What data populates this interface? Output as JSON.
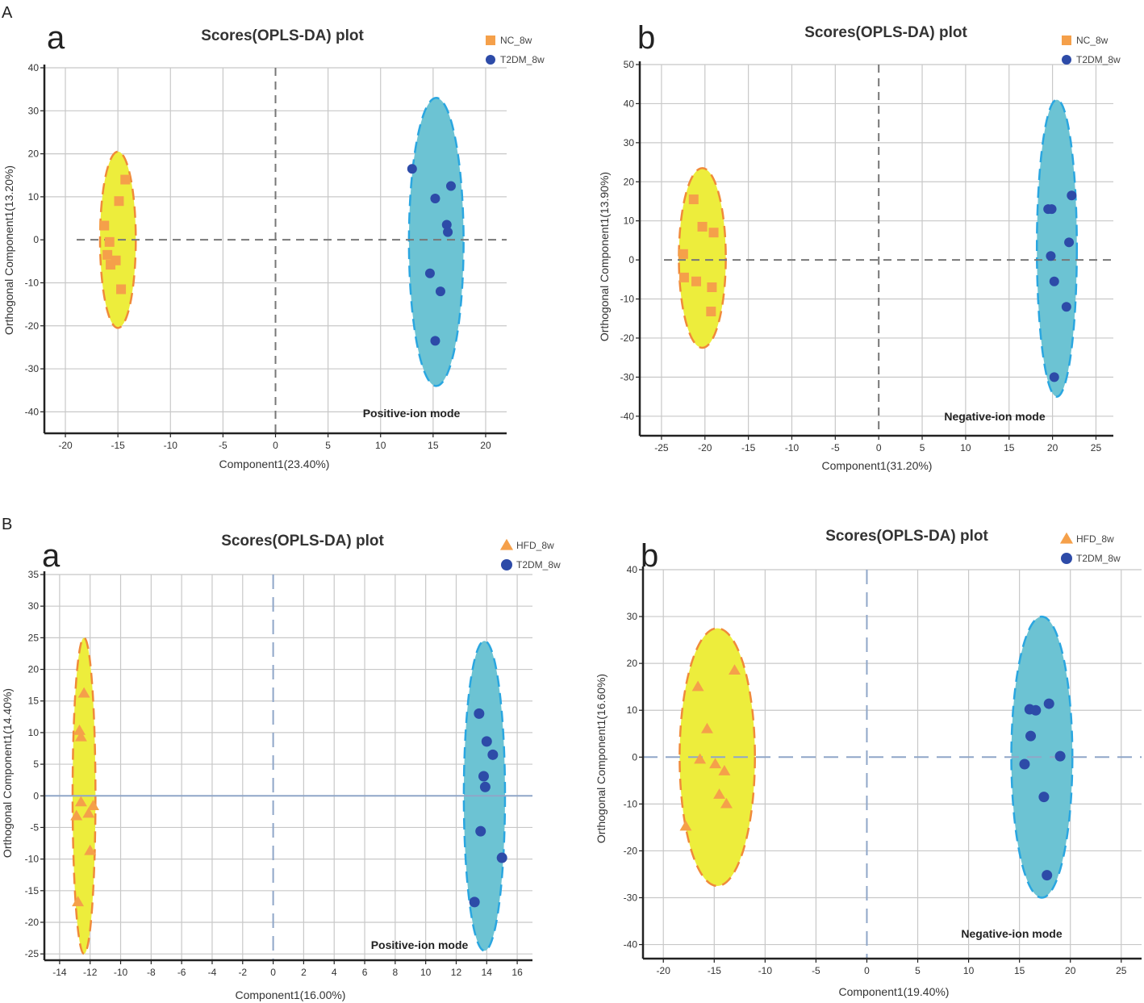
{
  "panel_labels": {
    "A": "A",
    "B": "B"
  },
  "colors": {
    "grid": "#c8c8c8",
    "axis": "#222222",
    "zero_line": "#777777",
    "zero_line_blue": "#8fa6c8",
    "orange": "#f5a04a",
    "blue_point": "#2d4ba8",
    "yellow_fill": "#eded3c",
    "orange_outline": "#f08a3a",
    "teal_fill": "#6cc3d3",
    "blue_outline": "#2aa6e0"
  },
  "chart_data": [
    {
      "id": "A-a",
      "type": "scatter",
      "sublabel": "a",
      "title": "Scores(OPLS-DA) plot",
      "xlabel": "Component1(23.40%)",
      "ylabel": "Orthogonal Component1(13.20%)",
      "mode_label": "Positive-ion mode",
      "xlim": [
        -22,
        22
      ],
      "ylim": [
        -45,
        40
      ],
      "xticks": [
        -20,
        -15,
        -10,
        -5,
        0,
        5,
        10,
        15,
        20
      ],
      "yticks": [
        -40,
        -30,
        -20,
        -10,
        0,
        10,
        20,
        30,
        40
      ],
      "ytick_suffix": "-",
      "series": [
        {
          "name": "NC_8w",
          "marker": "square",
          "color": "#f5a04a",
          "ellipse": {
            "cx": -15,
            "cy": 0,
            "rx": 1.7,
            "ry": 20.5,
            "fill": "#eded3c",
            "stroke": "#f08a3a"
          },
          "points": [
            [
              -14.3,
              14
            ],
            [
              -14.9,
              9
            ],
            [
              -16.3,
              3.3
            ],
            [
              -15.8,
              -0.5
            ],
            [
              -16.0,
              -3.5
            ],
            [
              -15.2,
              -4.8
            ],
            [
              -15.7,
              -5.8
            ],
            [
              -14.7,
              -11.5
            ]
          ]
        },
        {
          "name": "T2DM_8w",
          "marker": "circle",
          "color": "#2d4ba8",
          "ellipse": {
            "cx": 15.3,
            "cy": -0.5,
            "rx": 2.6,
            "ry": 33.5,
            "fill": "#6cc3d3",
            "stroke": "#2aa6e0"
          },
          "points": [
            [
              13.0,
              16.5
            ],
            [
              16.7,
              12.5
            ],
            [
              15.2,
              9.6
            ],
            [
              16.3,
              3.5
            ],
            [
              16.4,
              1.8
            ],
            [
              14.7,
              -7.8
            ],
            [
              15.7,
              -12
            ],
            [
              15.2,
              -23.5
            ]
          ]
        }
      ]
    },
    {
      "id": "A-b",
      "type": "scatter",
      "sublabel": "b",
      "title": "Scores(OPLS-DA) plot",
      "xlabel": "Component1(31.20%)",
      "ylabel": "Orthogonal Component1(13.90%)",
      "mode_label": "Negative-ion mode",
      "xlim": [
        -27.5,
        27
      ],
      "ylim": [
        -45,
        50
      ],
      "xticks": [
        -25,
        -20,
        -15,
        -10,
        -5,
        0,
        5,
        10,
        15,
        20,
        25
      ],
      "yticks": [
        -40,
        -30,
        -20,
        -10,
        0,
        10,
        20,
        30,
        40,
        50
      ],
      "ytick_suffix": "",
      "series": [
        {
          "name": "NC_8w",
          "marker": "square",
          "color": "#f5a04a",
          "ellipse": {
            "cx": -20.3,
            "cy": 0.5,
            "rx": 2.7,
            "ry": 23,
            "fill": "#eded3c",
            "stroke": "#f08a3a"
          },
          "points": [
            [
              -21.3,
              15.5
            ],
            [
              -20.3,
              8.5
            ],
            [
              -19.0,
              7
            ],
            [
              -22.5,
              1.5
            ],
            [
              -22.4,
              -4.5
            ],
            [
              -21.0,
              -5.5
            ],
            [
              -19.2,
              -7
            ],
            [
              -19.3,
              -13.2
            ]
          ]
        },
        {
          "name": "T2DM_8w",
          "marker": "circle",
          "color": "#2d4ba8",
          "ellipse": {
            "cx": 20.5,
            "cy": 3,
            "rx": 2.3,
            "ry": 38,
            "fill": "#6cc3d3",
            "stroke": "#2aa6e0"
          },
          "points": [
            [
              19.5,
              13
            ],
            [
              19.9,
              13
            ],
            [
              22.2,
              16.5
            ],
            [
              21.9,
              4.5
            ],
            [
              19.8,
              1
            ],
            [
              20.2,
              -5.5
            ],
            [
              21.6,
              -12
            ],
            [
              20.2,
              -30
            ]
          ]
        }
      ]
    },
    {
      "id": "B-a",
      "type": "scatter",
      "sublabel": "a",
      "title": "Scores(OPLS-DA) plot",
      "xlabel": "Component1(16.00%)",
      "ylabel": "Orthogonal Component1(14.40%)",
      "mode_label": "Positive-ion mode",
      "xlim": [
        -15,
        17
      ],
      "ylim": [
        -26,
        35
      ],
      "xticks": [
        -14,
        -12,
        -10,
        -8,
        -6,
        -4,
        -2,
        0,
        2,
        4,
        6,
        8,
        10,
        12,
        14,
        16
      ],
      "yticks": [
        -25,
        -20,
        -15,
        -10,
        -5,
        0,
        5,
        10,
        15,
        20,
        25,
        30,
        35
      ],
      "ytick_suffix": "",
      "series": [
        {
          "name": "HFD_8w",
          "marker": "triangle",
          "color": "#f5a04a",
          "ellipse": {
            "cx": -12.4,
            "cy": 0,
            "rx": 0.75,
            "ry": 25,
            "fill": "#eded3c",
            "stroke": "#f08a3a"
          },
          "points": [
            [
              -12.4,
              16.2
            ],
            [
              -12.7,
              10.3
            ],
            [
              -12.6,
              9.3
            ],
            [
              -12.6,
              -1.0
            ],
            [
              -11.8,
              -1.6
            ],
            [
              -12.1,
              -2.8
            ],
            [
              -12.9,
              -3.2
            ],
            [
              -12.0,
              -8.7
            ],
            [
              -12.8,
              -16.8
            ]
          ]
        },
        {
          "name": "T2DM_8w",
          "marker": "circle",
          "color": "#2d4ba8",
          "ellipse": {
            "cx": 13.85,
            "cy": 0,
            "rx": 1.35,
            "ry": 24.5,
            "fill": "#6cc3d3",
            "stroke": "#2aa6e0"
          },
          "points": [
            [
              13.5,
              13
            ],
            [
              14.0,
              8.6
            ],
            [
              14.4,
              6.5
            ],
            [
              13.8,
              3.1
            ],
            [
              13.9,
              1.4
            ],
            [
              13.6,
              -5.6
            ],
            [
              15.0,
              -9.8
            ],
            [
              13.2,
              -16.8
            ]
          ]
        }
      ]
    },
    {
      "id": "B-b",
      "type": "scatter",
      "sublabel": "b",
      "title": "Scores(OPLS-DA) plot",
      "xlabel": "Component1(19.40%)",
      "ylabel": "Orthogonal Component1(16.60%)",
      "mode_label": "Negative-ion mode",
      "xlim": [
        -22,
        27
      ],
      "ylim": [
        -43,
        40
      ],
      "xticks": [
        -20,
        -15,
        -10,
        -5,
        0,
        5,
        10,
        15,
        20,
        25
      ],
      "yticks": [
        -40,
        -30,
        -20,
        -10,
        0,
        10,
        20,
        30,
        40
      ],
      "ytick_suffix": "",
      "series": [
        {
          "name": "HFD_8w",
          "marker": "triangle",
          "color": "#f5a04a",
          "ellipse": {
            "cx": -14.7,
            "cy": 0,
            "rx": 3.7,
            "ry": 27.5,
            "fill": "#eded3c",
            "stroke": "#f08a3a"
          },
          "points": [
            [
              -13.0,
              18.5
            ],
            [
              -16.6,
              15.0
            ],
            [
              -15.7,
              6.0
            ],
            [
              -16.4,
              -0.5
            ],
            [
              -14.9,
              -1.5
            ],
            [
              -14.0,
              -3.0
            ],
            [
              -14.5,
              -8.0
            ],
            [
              -13.8,
              -10.0
            ],
            [
              -17.8,
              -14.8
            ]
          ]
        },
        {
          "name": "T2DM_8w",
          "marker": "circle",
          "color": "#2d4ba8",
          "ellipse": {
            "cx": 17.2,
            "cy": 0,
            "rx": 3.0,
            "ry": 30,
            "fill": "#6cc3d3",
            "stroke": "#2aa6e0"
          },
          "points": [
            [
              16.0,
              10.2
            ],
            [
              16.6,
              10.0
            ],
            [
              17.9,
              11.4
            ],
            [
              16.1,
              4.5
            ],
            [
              15.5,
              -1.5
            ],
            [
              19.0,
              0.2
            ],
            [
              17.4,
              -8.5
            ],
            [
              17.7,
              -25.2
            ]
          ]
        }
      ]
    }
  ]
}
